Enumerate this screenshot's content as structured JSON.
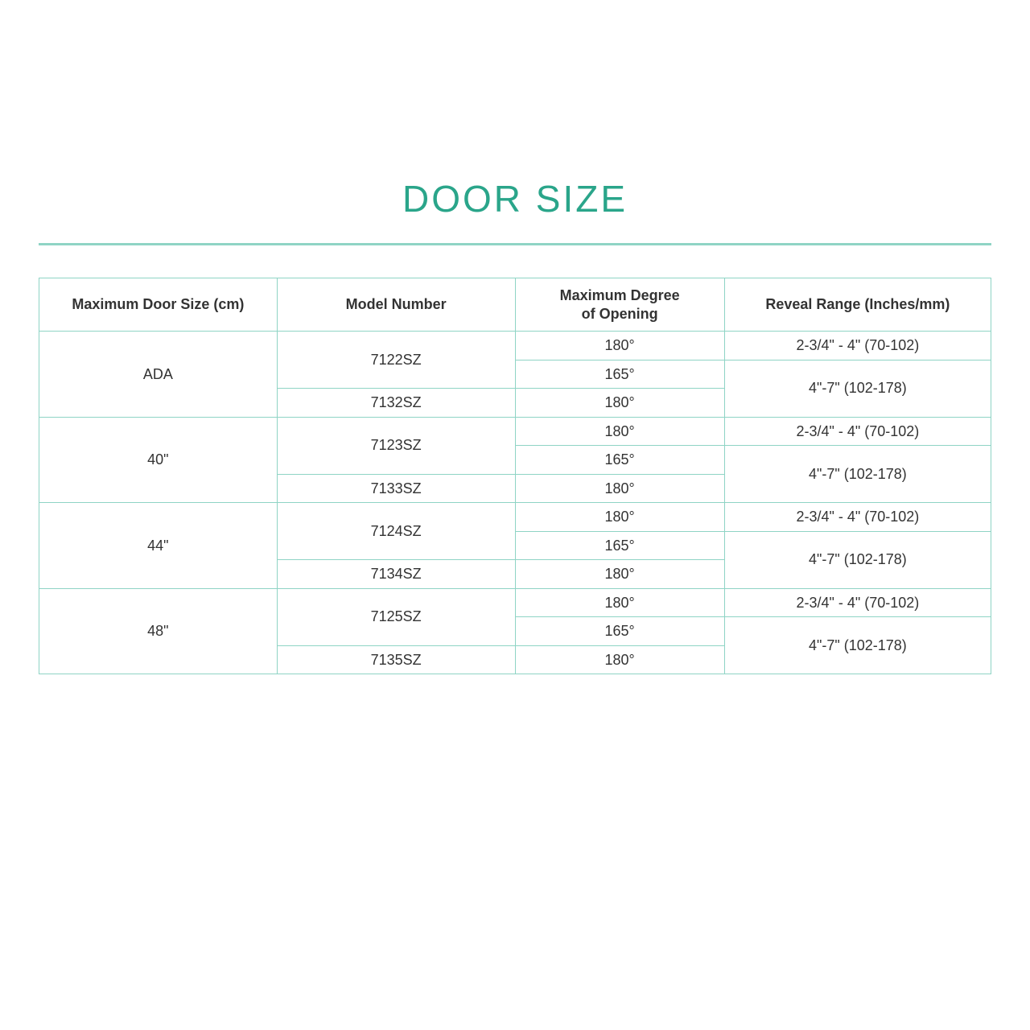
{
  "title": "DOOR SIZE",
  "colors": {
    "accent": "#2aa58a",
    "border": "#8fd4c5",
    "text": "#333333",
    "background": "#ffffff"
  },
  "table": {
    "columns": [
      "Maximum Door Size (cm)",
      "Model Number",
      "Maximum Degree of Opening",
      "Reveal Range (Inches/mm)"
    ],
    "groups": [
      {
        "size": "ADA",
        "model_a": "7122SZ",
        "model_b": "7132SZ",
        "deg1": "180°",
        "deg2": "165°",
        "deg3": "180°",
        "reveal1": "2-3/4\" - 4\" (70-102)",
        "reveal2": "4\"-7\" (102-178)"
      },
      {
        "size": "40\"",
        "model_a": "7123SZ",
        "model_b": "7133SZ",
        "deg1": "180°",
        "deg2": "165°",
        "deg3": "180°",
        "reveal1": "2-3/4\" - 4\" (70-102)",
        "reveal2": "4\"-7\" (102-178)"
      },
      {
        "size": "44\"",
        "model_a": "7124SZ",
        "model_b": "7134SZ",
        "deg1": "180°",
        "deg2": "165°",
        "deg3": "180°",
        "reveal1": "2-3/4\" - 4\" (70-102)",
        "reveal2": "4\"-7\" (102-178)"
      },
      {
        "size": "48\"",
        "model_a": "7125SZ",
        "model_b": "7135SZ",
        "deg1": "180°",
        "deg2": "165°",
        "deg3": "180°",
        "reveal1": "2-3/4\" - 4\" (70-102)",
        "reveal2": "4\"-7\" (102-178)"
      }
    ]
  }
}
